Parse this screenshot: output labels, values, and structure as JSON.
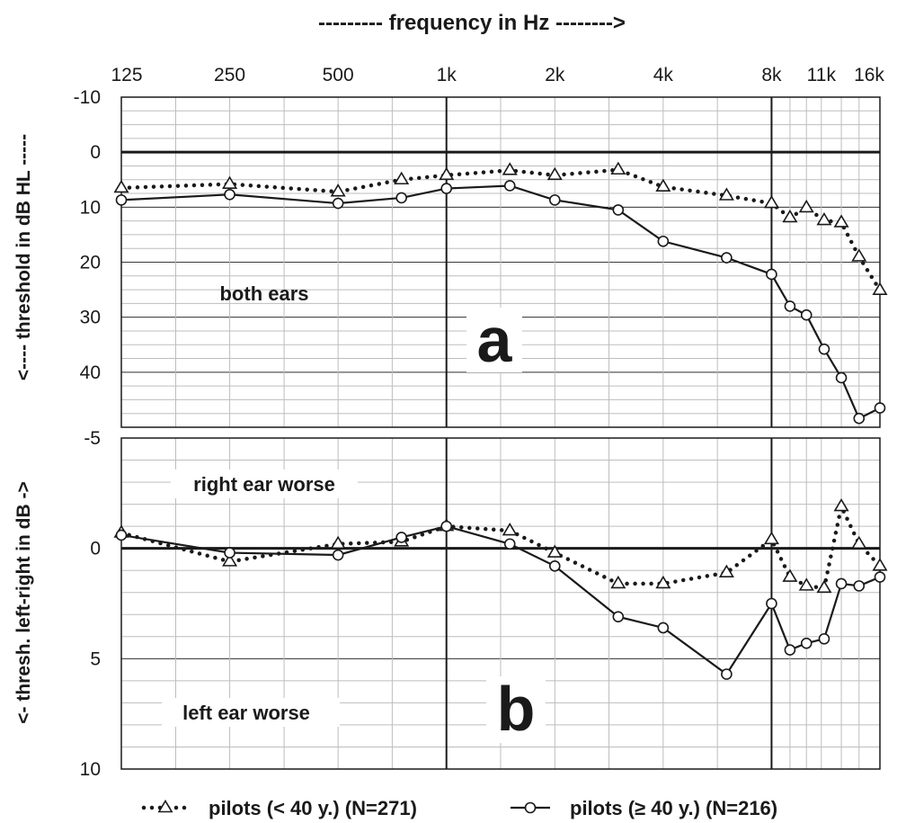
{
  "chart_data": {
    "type": "line",
    "x_axis": {
      "label": "--------- frequency in Hz -------->",
      "scale": "log",
      "ticks": [
        {
          "value": 125,
          "label": "125"
        },
        {
          "value": 250,
          "label": "250"
        },
        {
          "value": 500,
          "label": "500"
        },
        {
          "value": 1000,
          "label": "1k"
        },
        {
          "value": 2000,
          "label": "2k"
        },
        {
          "value": 4000,
          "label": "4k"
        },
        {
          "value": 8000,
          "label": "8k"
        },
        {
          "value": 11000,
          "label": "11k"
        },
        {
          "value": 16000,
          "label": "16k"
        }
      ],
      "range": [
        125,
        16000
      ]
    },
    "x": [
      125,
      250,
      500,
      750,
      1000,
      1500,
      2000,
      3000,
      4000,
      6000,
      8000,
      9000,
      10000,
      11200,
      12500,
      14000,
      16000
    ],
    "panels": [
      {
        "id": "a",
        "letter": "a",
        "annotation": "both ears",
        "ylabel": "<---- threshold  in  dB HL -----",
        "ylim": [
          -10,
          50
        ],
        "y_inverted": true,
        "y_ticks": [
          -10,
          0,
          10,
          20,
          30,
          40
        ],
        "y_tick_labels": [
          "-10",
          "0",
          "10",
          "20",
          "30",
          "40"
        ],
        "series": [
          {
            "key": "young",
            "values": [
              6.5,
              5.8,
              7.2,
              5,
              4.2,
              3.3,
              4.2,
              3.2,
              6.3,
              7.9,
              9.3,
              11.9,
              10.1,
              12.4,
              12.8,
              19,
              25.1
            ]
          },
          {
            "key": "old",
            "values": [
              8.7,
              7.7,
              9.3,
              8.3,
              6.6,
              6.1,
              8.7,
              10.5,
              16.2,
              19.2,
              22.2,
              28,
              29.6,
              35.8,
              41,
              48.4,
              46.5
            ]
          }
        ]
      },
      {
        "id": "b",
        "letter": "b",
        "annotation_top": "right ear worse",
        "annotation_bottom": "left ear worse",
        "ylabel": "<- thresh. left-right in dB ->",
        "ylim": [
          -5,
          10
        ],
        "y_inverted": true,
        "y_ticks": [
          -5,
          0,
          5,
          10
        ],
        "y_tick_labels": [
          "-5",
          "0",
          "5",
          "10"
        ],
        "series": [
          {
            "key": "young",
            "values": [
              -0.7,
              0.6,
              -0.2,
              -0.3,
              -1,
              -0.8,
              0.2,
              1.6,
              1.6,
              1.1,
              -0.4,
              1.3,
              1.7,
              1.8,
              -1.9,
              -0.2,
              0.8
            ]
          },
          {
            "key": "old",
            "values": [
              -0.6,
              0.2,
              0.3,
              -0.5,
              -1,
              -0.2,
              0.8,
              3.1,
              3.6,
              5.7,
              2.5,
              4.6,
              4.3,
              4.1,
              1.6,
              1.7,
              1.3
            ]
          }
        ]
      }
    ],
    "legend": {
      "position": "bottom",
      "items": [
        {
          "key": "young",
          "label": "pilots (< 40 y.)  (N=271)",
          "style": "dotted",
          "marker": "triangle"
        },
        {
          "key": "old",
          "label": "pilots (≥ 40 y.)  (N=216)",
          "style": "solid",
          "marker": "circle"
        }
      ]
    },
    "colors": {
      "line": "#1a1a1a",
      "marker_fill": "#ffffff"
    }
  }
}
